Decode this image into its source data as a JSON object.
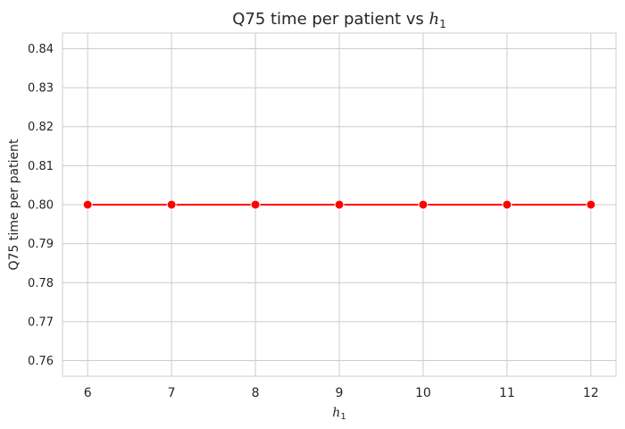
{
  "chart_data": {
    "type": "line",
    "title_text": "Q75 time per patient vs ",
    "title_var": "h",
    "title_sub": "1",
    "xlabel_var": "h",
    "xlabel_sub": "1",
    "ylabel": "Q75 time per patient",
    "x": [
      6,
      7,
      8,
      9,
      10,
      11,
      12
    ],
    "series": [
      {
        "values": [
          0.8,
          0.8,
          0.8,
          0.8,
          0.8,
          0.8,
          0.8
        ],
        "color": "#ff0000"
      }
    ],
    "xticks": [
      "6",
      "7",
      "8",
      "9",
      "10",
      "11",
      "12"
    ],
    "yticks": [
      "0.76",
      "0.77",
      "0.78",
      "0.79",
      "0.80",
      "0.81",
      "0.82",
      "0.83",
      "0.84"
    ],
    "xlim": [
      5.7,
      12.3
    ],
    "ylim": [
      0.756,
      0.844
    ],
    "grid": true,
    "grid_color": "#cccccc",
    "background": "#ffffff"
  }
}
